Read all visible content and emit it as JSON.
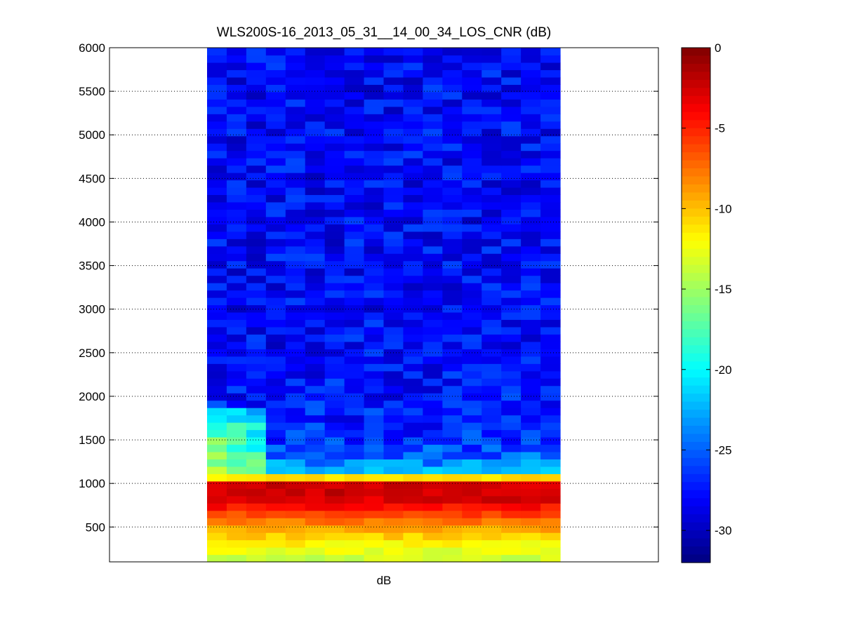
{
  "chart_data": {
    "type": "heatmap",
    "title": "WLS200S-16_2013_05_31__14_00_34_LOS_CNR (dB)",
    "xlabel": "dB",
    "ylabel": "",
    "ylim": [
      100,
      6000
    ],
    "yticks": [
      500,
      1000,
      1500,
      2000,
      2500,
      3000,
      3500,
      4000,
      4500,
      5000,
      5500,
      6000
    ],
    "ytick_labels": [
      "500",
      "1000",
      "1500",
      "2000",
      "2500",
      "3000",
      "3500",
      "4000",
      "4500",
      "5000",
      "5500",
      "6000"
    ],
    "grid": "y-dotted",
    "colormap": "jet",
    "colorbar": {
      "range": [
        -32,
        0
      ],
      "ticks": [
        0,
        -5,
        -10,
        -15,
        -20,
        -25,
        -30
      ],
      "tick_labels": [
        "0",
        "-5",
        "-10",
        "-15",
        "-20",
        "-25",
        "-30"
      ]
    },
    "columns": 18,
    "rows": 70,
    "profile": [
      {
        "range": 100,
        "cnr": -14
      },
      {
        "range": 300,
        "cnr": -12
      },
      {
        "range": 500,
        "cnr": -9
      },
      {
        "range": 650,
        "cnr": -6
      },
      {
        "range": 800,
        "cnr": -3
      },
      {
        "range": 950,
        "cnr": -2
      },
      {
        "range": 1000,
        "cnr": -3
      },
      {
        "range": 1050,
        "cnr": -10
      },
      {
        "range": 1100,
        "cnr": -13
      },
      {
        "range": 1150,
        "cnr": -22
      },
      {
        "range": 1300,
        "cnr": -25
      },
      {
        "range": 1600,
        "cnr": -27
      },
      {
        "range": 2000,
        "cnr": -27.5
      },
      {
        "range": 2500,
        "cnr": -28
      },
      {
        "range": 6000,
        "cnr": -28
      }
    ],
    "early_columns_near_field": {
      "columns": [
        0,
        1,
        2
      ],
      "range": [
        1100,
        1900
      ],
      "cnr": [
        -14,
        -20
      ]
    }
  }
}
